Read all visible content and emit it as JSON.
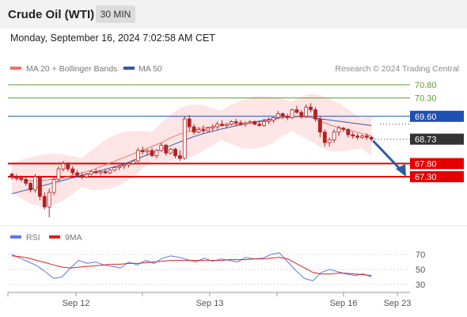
{
  "header": {
    "instrument": "Crude Oil (WTI)",
    "timeframe": "30 MIN",
    "timestamp": "Monday, September 16, 2024 7:02:58 AM CET",
    "credit": "Research © 2024 Trading Central"
  },
  "legend": {
    "ma20": "MA 20 + Bollinger Bands",
    "ma50": "MA 50",
    "rsi": "RSI",
    "rsi_ma": "9MA"
  },
  "colors": {
    "candle": "#b22222",
    "ma20": "#f07070",
    "band_fill": "#fde2e2",
    "ma50": "#3a57a7",
    "green_level": "#5aa02c",
    "blue_level": "#1f4fb0",
    "red_level": "#e30000",
    "last_price_box": "#333333",
    "arrow": "#2d5aa0",
    "rsi": "#5b7be0",
    "rsi_ma": "#e02020"
  },
  "chart_data": {
    "type": "candlestick",
    "x_tick_labels": [
      "Sep 12",
      "Sep 13",
      "Sep 16",
      "Sep 23"
    ],
    "levels": [
      {
        "value": 70.8,
        "label": "70.80",
        "kind": "resistance"
      },
      {
        "value": 70.3,
        "label": "70.30",
        "kind": "resistance"
      },
      {
        "value": 69.6,
        "label": "69.60",
        "kind": "pivot"
      },
      {
        "value": 68.73,
        "label": "68.73",
        "kind": "last_price"
      },
      {
        "value": 67.8,
        "label": "67.80",
        "kind": "support"
      },
      {
        "value": 67.3,
        "label": "67.30",
        "kind": "support"
      }
    ],
    "forecast_target": 67.3,
    "candles": [
      [
        67.4,
        67.45,
        67.2,
        67.3
      ],
      [
        67.3,
        67.4,
        67.15,
        67.25
      ],
      [
        67.25,
        67.35,
        67.1,
        67.2
      ],
      [
        67.2,
        67.3,
        66.95,
        67.05
      ],
      [
        67.05,
        67.1,
        66.7,
        66.8
      ],
      [
        66.8,
        67.4,
        66.7,
        67.3
      ],
      [
        67.3,
        67.35,
        66.4,
        66.55
      ],
      [
        66.55,
        66.7,
        66.05,
        66.15
      ],
      [
        66.15,
        66.85,
        65.75,
        66.7
      ],
      [
        66.7,
        67.3,
        66.6,
        67.2
      ],
      [
        67.2,
        67.7,
        67.1,
        67.6
      ],
      [
        67.6,
        67.9,
        67.5,
        67.8
      ],
      [
        67.8,
        67.85,
        67.5,
        67.6
      ],
      [
        67.6,
        67.7,
        67.35,
        67.45
      ],
      [
        67.45,
        67.55,
        67.3,
        67.35
      ],
      [
        67.35,
        67.45,
        67.2,
        67.3
      ],
      [
        67.3,
        67.45,
        67.25,
        67.4
      ],
      [
        67.4,
        67.55,
        67.35,
        67.5
      ],
      [
        67.5,
        67.6,
        67.4,
        67.45
      ],
      [
        67.45,
        67.55,
        67.35,
        67.5
      ],
      [
        67.5,
        67.6,
        67.4,
        67.45
      ],
      [
        67.45,
        67.6,
        67.4,
        67.55
      ],
      [
        67.55,
        67.7,
        67.5,
        67.65
      ],
      [
        67.65,
        67.75,
        67.55,
        67.7
      ],
      [
        67.7,
        67.8,
        67.6,
        67.75
      ],
      [
        67.75,
        67.85,
        67.65,
        67.8
      ],
      [
        67.8,
        67.95,
        67.75,
        67.9
      ],
      [
        67.9,
        68.4,
        67.85,
        68.3
      ],
      [
        68.3,
        68.45,
        68.15,
        68.25
      ],
      [
        68.25,
        68.35,
        68.1,
        68.3
      ],
      [
        68.3,
        68.4,
        68.05,
        68.1
      ],
      [
        68.1,
        68.35,
        68.0,
        68.3
      ],
      [
        68.3,
        68.6,
        68.25,
        68.5
      ],
      [
        68.5,
        68.55,
        68.1,
        68.2
      ],
      [
        68.2,
        68.4,
        68.15,
        68.35
      ],
      [
        68.35,
        68.4,
        68.0,
        68.1
      ],
      [
        68.1,
        68.3,
        67.9,
        68.0
      ],
      [
        68.0,
        69.6,
        67.95,
        69.5
      ],
      [
        69.5,
        69.65,
        69.05,
        69.2
      ],
      [
        69.2,
        69.3,
        68.9,
        69.0
      ],
      [
        69.0,
        69.2,
        68.95,
        69.1
      ],
      [
        69.1,
        69.25,
        68.95,
        69.05
      ],
      [
        69.05,
        69.2,
        69.0,
        69.15
      ],
      [
        69.15,
        69.3,
        69.05,
        69.2
      ],
      [
        69.2,
        69.4,
        69.1,
        69.3
      ],
      [
        69.3,
        69.45,
        69.2,
        69.25
      ],
      [
        69.25,
        69.35,
        69.15,
        69.3
      ],
      [
        69.3,
        69.45,
        69.25,
        69.4
      ],
      [
        69.4,
        69.5,
        69.25,
        69.35
      ],
      [
        69.35,
        69.45,
        69.25,
        69.3
      ],
      [
        69.3,
        69.4,
        69.2,
        69.35
      ],
      [
        69.35,
        69.45,
        69.3,
        69.4
      ],
      [
        69.4,
        69.45,
        69.25,
        69.3
      ],
      [
        69.3,
        69.4,
        69.2,
        69.25
      ],
      [
        69.25,
        69.5,
        69.2,
        69.4
      ],
      [
        69.4,
        69.55,
        69.3,
        69.45
      ],
      [
        69.45,
        69.6,
        69.35,
        69.55
      ],
      [
        69.55,
        69.8,
        69.5,
        69.7
      ],
      [
        69.7,
        69.75,
        69.5,
        69.6
      ],
      [
        69.6,
        69.7,
        69.45,
        69.55
      ],
      [
        69.55,
        69.9,
        69.5,
        69.85
      ],
      [
        69.85,
        70.0,
        69.7,
        69.75
      ],
      [
        69.75,
        69.85,
        69.5,
        69.6
      ],
      [
        69.6,
        70.05,
        69.55,
        69.95
      ],
      [
        69.95,
        70.1,
        69.75,
        69.85
      ],
      [
        69.85,
        69.95,
        69.4,
        69.5
      ],
      [
        69.5,
        69.6,
        68.8,
        69.0
      ],
      [
        69.0,
        69.1,
        68.45,
        68.6
      ],
      [
        68.6,
        68.8,
        68.45,
        68.7
      ],
      [
        68.7,
        69.1,
        68.6,
        69.0
      ],
      [
        69.0,
        69.25,
        68.85,
        69.15
      ],
      [
        69.15,
        69.2,
        69.0,
        69.1
      ],
      [
        69.1,
        69.15,
        68.8,
        68.9
      ],
      [
        68.9,
        69.0,
        68.75,
        68.85
      ],
      [
        68.85,
        68.95,
        68.7,
        68.8
      ],
      [
        68.8,
        68.9,
        68.75,
        68.85
      ],
      [
        68.85,
        68.95,
        68.7,
        68.8
      ],
      [
        68.8,
        68.85,
        68.65,
        68.73
      ]
    ],
    "ma20": [
      67.25,
      67.2,
      67.15,
      67.15,
      67.2,
      67.25,
      67.35,
      67.45,
      67.55,
      67.7,
      67.85,
      68.0,
      68.15,
      68.3,
      68.45,
      68.6,
      68.8,
      68.95,
      69.05,
      69.15,
      69.2,
      69.25,
      69.3,
      69.3,
      69.35,
      69.4,
      69.45,
      69.55,
      69.6,
      69.6,
      69.55,
      69.4,
      69.25,
      69.15,
      69.05,
      68.95,
      68.85
    ],
    "ma50": [
      66.65,
      66.75,
      66.85,
      66.95,
      67.05,
      67.15,
      67.25,
      67.35,
      67.45,
      67.55,
      67.65,
      67.75,
      67.9,
      68.05,
      68.2,
      68.35,
      68.5,
      68.65,
      68.8,
      68.92,
      69.02,
      69.12,
      69.2,
      69.28,
      69.36,
      69.44,
      69.5,
      69.55,
      69.58,
      69.58,
      69.55,
      69.5,
      69.45,
      69.4,
      69.35,
      69.3,
      69.25
    ],
    "rsi_axis": [
      30,
      50,
      70
    ],
    "rsi": [
      70,
      65,
      60,
      55,
      47,
      38,
      40,
      52,
      62,
      58,
      60,
      56,
      54,
      52,
      60,
      56,
      62,
      58,
      65,
      68,
      66,
      63,
      60,
      65,
      61,
      64,
      62,
      60,
      66,
      64,
      65,
      70,
      72,
      60,
      48,
      38,
      35,
      46,
      50,
      47,
      44,
      42,
      44,
      40
    ],
    "rsi_ma": [
      68,
      67,
      65,
      62,
      59,
      56,
      53,
      52,
      53,
      54,
      55,
      56,
      57,
      57,
      58,
      58,
      59,
      60,
      61,
      62,
      62,
      62,
      62,
      62,
      62,
      62,
      63,
      63,
      63,
      64,
      64,
      65,
      66,
      64,
      58,
      52,
      46,
      44,
      44,
      45,
      45,
      44,
      43,
      42
    ]
  }
}
